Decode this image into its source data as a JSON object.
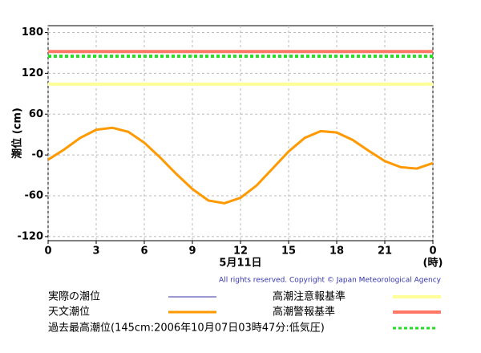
{
  "chart_data": {
    "type": "line",
    "y_label": "潮位 (cm)",
    "x_label": "5月11日",
    "x_unit": "(時)",
    "credit": "All rights reserved. Copyright © Japan Meteorological Agency",
    "x": [
      0,
      1,
      2,
      3,
      4,
      5,
      6,
      7,
      8,
      9,
      10,
      11,
      12,
      13,
      14,
      15,
      16,
      17,
      18,
      19,
      20,
      21,
      22,
      23,
      24
    ],
    "series": [
      {
        "name": "実際の潮位",
        "color": "#3333aa",
        "values": [
          null,
          null,
          null,
          null,
          null,
          null,
          null,
          null,
          null,
          null,
          null,
          null,
          null,
          null,
          null,
          null,
          null,
          null,
          null,
          null,
          null,
          null,
          null,
          null,
          null
        ]
      },
      {
        "name": "天文潮位",
        "color": "#ff9900",
        "values": [
          -7,
          8,
          25,
          37,
          40,
          34,
          18,
          -4,
          -28,
          -50,
          -67,
          -71,
          -63,
          -45,
          -20,
          5,
          25,
          35,
          33,
          22,
          6,
          -9,
          -18,
          -20,
          -12
        ]
      }
    ],
    "reference_lines": [
      {
        "name": "高潮注意報基準",
        "value": 104,
        "color": "#ffff99",
        "style": "solid"
      },
      {
        "name": "高潮警報基準",
        "value": 152,
        "color": "#ff7766",
        "style": "solid"
      },
      {
        "name": "過去最高潮位(145cm:2006年10月07日03時47分:低気圧)",
        "value": 145,
        "color": "#22dd22",
        "style": "dashed"
      }
    ],
    "xlim": [
      0,
      24
    ],
    "xticks": [
      0,
      3,
      6,
      9,
      12,
      15,
      18,
      21,
      {
        "value": 24,
        "label": "0"
      }
    ],
    "ylim": [
      -126,
      190
    ],
    "yticks": [
      -120,
      -60,
      {
        "value": 0,
        "label": "-0"
      },
      60,
      120,
      180
    ],
    "grid": true
  }
}
